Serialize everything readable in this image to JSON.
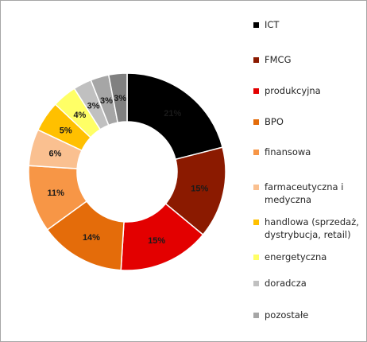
{
  "chart_data": {
    "type": "pie",
    "subtype": "donut",
    "legend_position": "right",
    "slices": [
      {
        "name": "ICT",
        "value": 21,
        "label": "21%",
        "color": "#000000",
        "label_color": "#ffffff"
      },
      {
        "name": "FMCG",
        "value": 15,
        "label": "15%",
        "color": "#8b1a00",
        "label_color": "#1a1a1a"
      },
      {
        "name": "produkcyjna",
        "value": 15,
        "label": "15%",
        "color": "#e30000",
        "label_color": "#1a1a1a"
      },
      {
        "name": "BPO",
        "value": 14,
        "label": "14%",
        "color": "#e46c0a",
        "label_color": "#1a1a1a"
      },
      {
        "name": "finansowa",
        "value": 11,
        "label": "11%",
        "color": "#f79646",
        "label_color": "#1a1a1a"
      },
      {
        "name": "farmaceutyczna i medyczna",
        "value": 6,
        "label": "6%",
        "color": "#fac090",
        "label_color": "#1a1a1a"
      },
      {
        "name": "handlowa (sprzedaż, dystrybucja, retail)",
        "value": 5,
        "label": "5%",
        "color": "#ffc000",
        "label_color": "#1a1a1a"
      },
      {
        "name": "energetyczna",
        "value": 4,
        "label": "4%",
        "color": "#ffff66",
        "label_color": "#1a1a1a"
      },
      {
        "name": "doradcza",
        "value": 3,
        "label": "3%",
        "color": "#c0c0c0",
        "label_color": "#1a1a1a"
      },
      {
        "name": "pozostałe",
        "value": 3,
        "label": "3%",
        "color": "#a6a6a6",
        "label_color": "#1a1a1a"
      },
      {
        "name": "",
        "value": 3,
        "label": "3%",
        "color": "#808080",
        "label_color": "#1a1a1a"
      }
    ],
    "legend": [
      {
        "label": "ICT",
        "color": "#000000"
      },
      {
        "label": "FMCG",
        "color": "#8b1a00"
      },
      {
        "label": "produkcyjna",
        "color": "#e30000"
      },
      {
        "label": "BPO",
        "color": "#e46c0a"
      },
      {
        "label": "finansowa",
        "color": "#f79646"
      },
      {
        "label": "farmaceutyczna i medyczna",
        "color": "#fac090"
      },
      {
        "label": "handlowa (sprzedaż, dystrybucja, retail)",
        "color": "#ffc000"
      },
      {
        "label": "energetyczna",
        "color": "#ffff66"
      },
      {
        "label": "doradcza",
        "color": "#c0c0c0"
      },
      {
        "label": "pozostałe",
        "color": "#a6a6a6"
      }
    ]
  }
}
